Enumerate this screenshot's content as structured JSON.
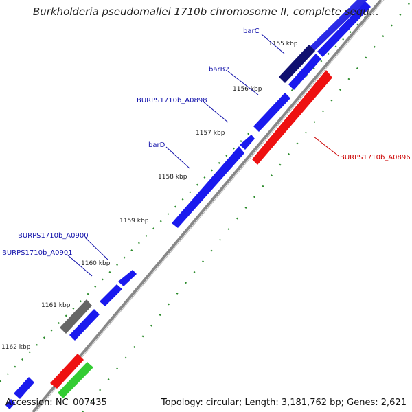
{
  "title": "Burkholderia pseudomallei 1710b chromosome II, complete sequ...",
  "footer": {
    "accession": "Accession: NC_007435",
    "info": "Topology: circular; Length: 3,181,762 bp; Genes: 2,621"
  },
  "colors": {
    "background": "#ffffff",
    "backbone": "#888888",
    "forward_cds": "#1a1aee",
    "dark_cds": "#101070",
    "reverse_cds": "#ee1111",
    "gray_feature": "#666666",
    "green_feature": "#33cc33",
    "tick": "#2a8a2a",
    "label_blue": "#1010aa",
    "label_red": "#cc0000"
  },
  "ticks": [
    {
      "label": "1155 kbp"
    },
    {
      "label": "1156 kbp"
    },
    {
      "label": "1157 kbp"
    },
    {
      "label": "1158 kbp"
    },
    {
      "label": "1159 kbp"
    },
    {
      "label": "1160 kbp"
    },
    {
      "label": "1161 kbp"
    },
    {
      "label": "1162 kbp"
    }
  ],
  "gene_labels": [
    {
      "text": "barC",
      "color": "blue"
    },
    {
      "text": "barB2",
      "color": "blue"
    },
    {
      "text": "BURPS1710b_A0898",
      "color": "blue"
    },
    {
      "text": "barD",
      "color": "blue"
    },
    {
      "text": "BURPS1710b_A0900",
      "color": "blue"
    },
    {
      "text": "BURPS1710b_A0901",
      "color": "blue"
    },
    {
      "text": "BURPS1710b_A0896",
      "color": "red"
    }
  ]
}
